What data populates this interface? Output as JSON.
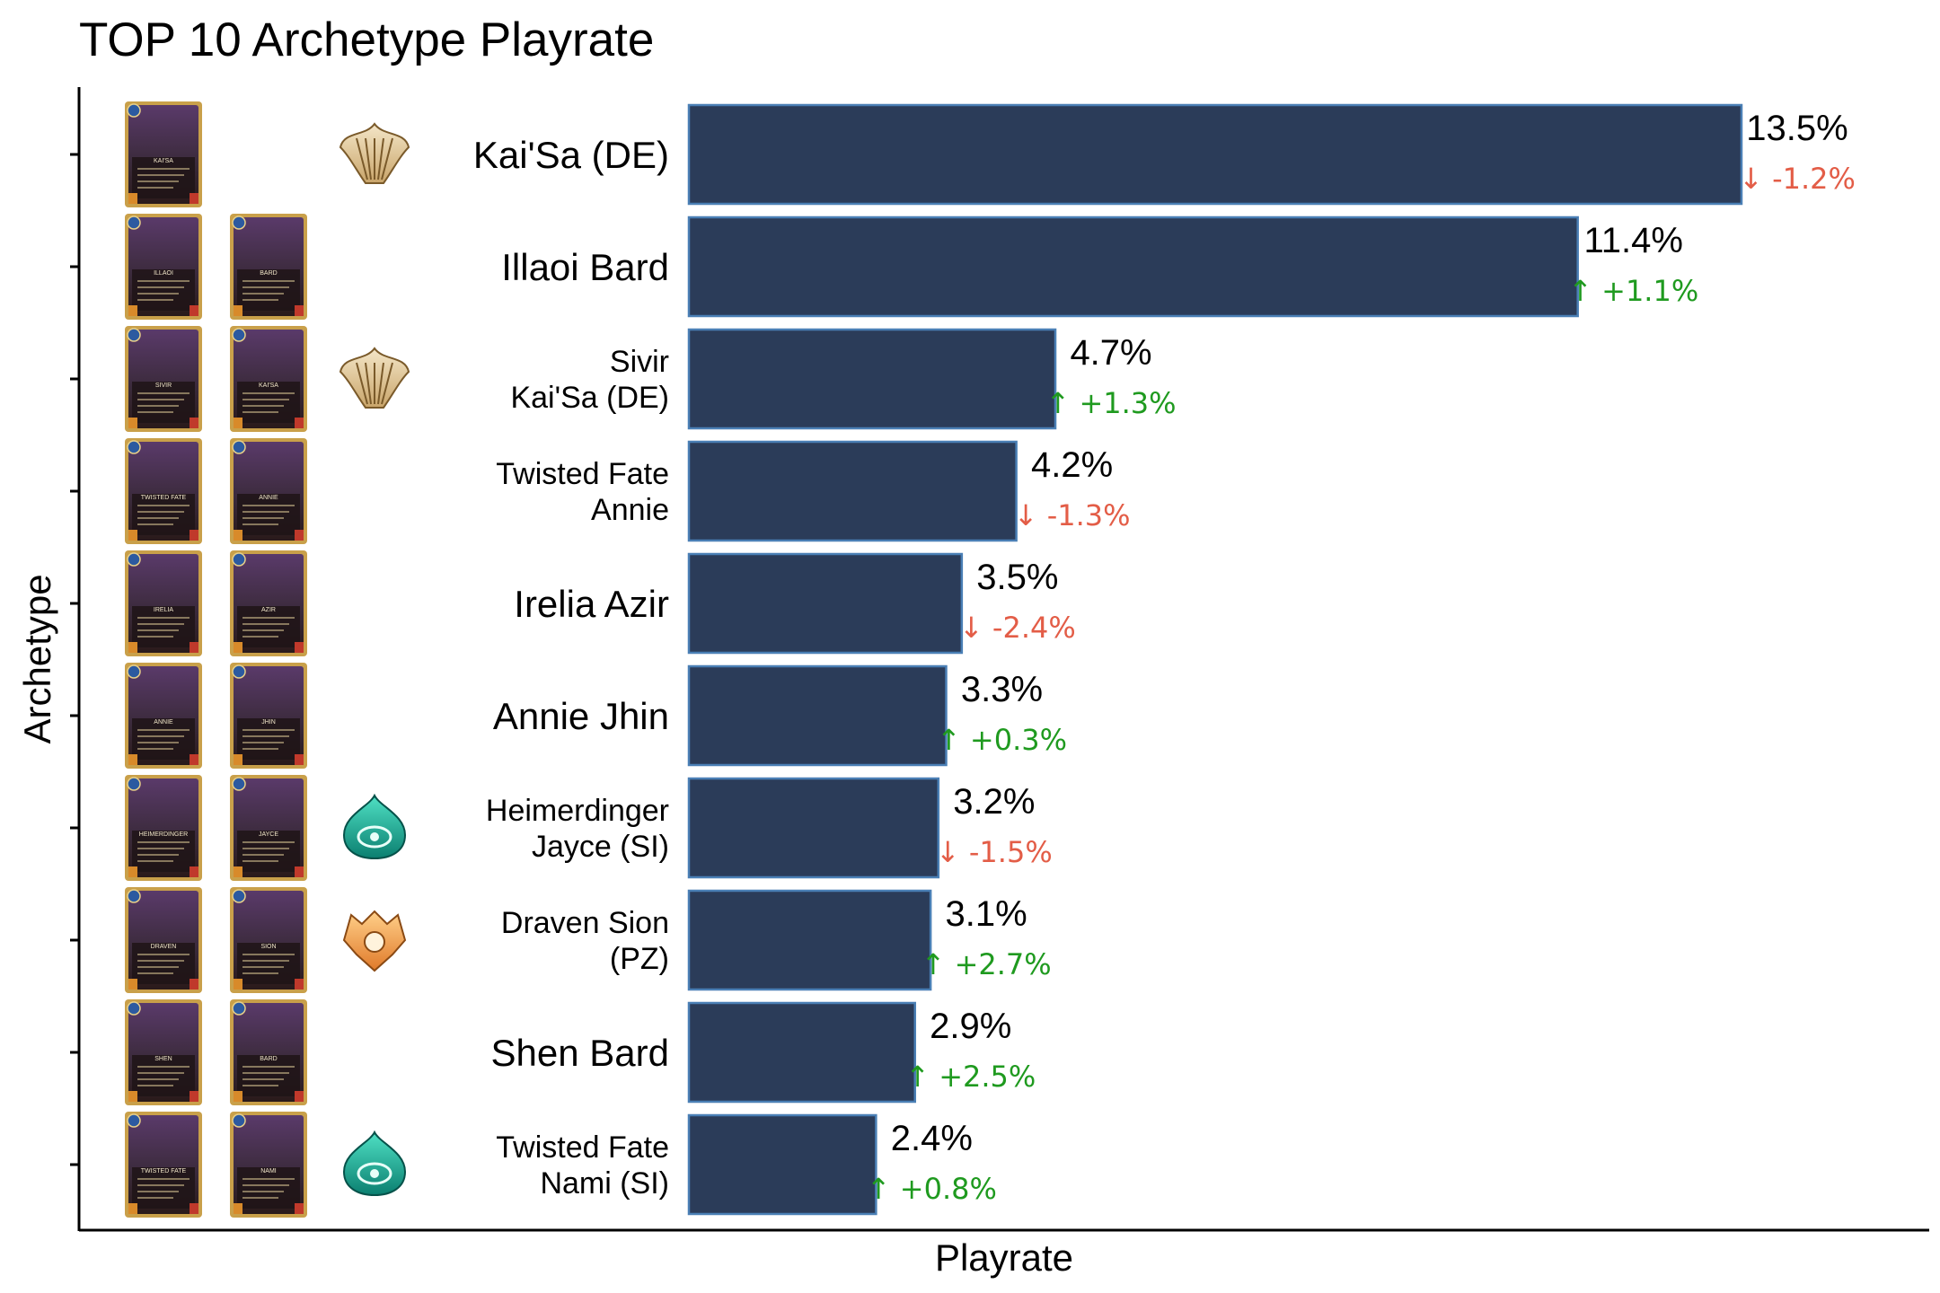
{
  "chart_data": {
    "type": "bar",
    "orientation": "horizontal",
    "title": "TOP 10 Archetype Playrate",
    "xlabel": "Playrate",
    "ylabel": "Archetype",
    "xlim": [
      0,
      14.6
    ],
    "grid": false,
    "legend": "none",
    "categories": [
      [
        "Kai'Sa (DE)"
      ],
      [
        "Illaoi Bard"
      ],
      [
        "Sivir",
        "Kai'Sa (DE)"
      ],
      [
        "Twisted Fate",
        "Annie"
      ],
      [
        "Irelia Azir"
      ],
      [
        "Annie Jhin"
      ],
      [
        "Heimerdinger",
        "Jayce (SI)"
      ],
      [
        "Draven Sion",
        "(PZ)"
      ],
      [
        "Shen Bard"
      ],
      [
        "Twisted Fate",
        "Nami (SI)"
      ]
    ],
    "values": [
      13.5,
      11.4,
      4.7,
      4.2,
      3.5,
      3.3,
      3.2,
      3.1,
      2.9,
      2.4
    ],
    "value_labels": [
      "13.5%",
      "11.4%",
      "4.7%",
      "4.2%",
      "3.5%",
      "3.3%",
      "3.2%",
      "3.1%",
      "2.9%",
      "2.4%"
    ],
    "changes": [
      -1.2,
      1.1,
      1.3,
      -1.3,
      -2.4,
      0.3,
      -1.5,
      2.7,
      2.5,
      0.8
    ],
    "change_labels": [
      "↓ -1.2%",
      "↑ +1.1%",
      "↑ +1.3%",
      "↓ -1.3%",
      "↓ -2.4%",
      "↑ +0.3%",
      "↓ -1.5%",
      "↑ +2.7%",
      "↑ +2.5%",
      "↑ +0.8%"
    ],
    "champion_cards": [
      [
        "KAI'SA"
      ],
      [
        "ILLAOI",
        "BARD"
      ],
      [
        "SIVIR",
        "KAI'SA"
      ],
      [
        "TWISTED FATE",
        "ANNIE"
      ],
      [
        "IRELIA",
        "AZIR"
      ],
      [
        "ANNIE",
        "JHIN"
      ],
      [
        "HEIMERDINGER",
        "JAYCE"
      ],
      [
        "DRAVEN",
        "SION"
      ],
      [
        "SHEN",
        "BARD"
      ],
      [
        "TWISTED FATE",
        "NAMI"
      ]
    ],
    "region_icons": [
      "shurima-icon",
      null,
      "shurima-icon",
      null,
      null,
      null,
      "shadow-isles-icon",
      "piltover-zaun-icon",
      null,
      "shadow-isles-icon"
    ],
    "colors": {
      "bar_fill": "#2b3c59",
      "bar_stroke": "#4a7fb5",
      "up": "#1f9a1f",
      "down": "#e35d47",
      "axis": "#000000"
    }
  }
}
